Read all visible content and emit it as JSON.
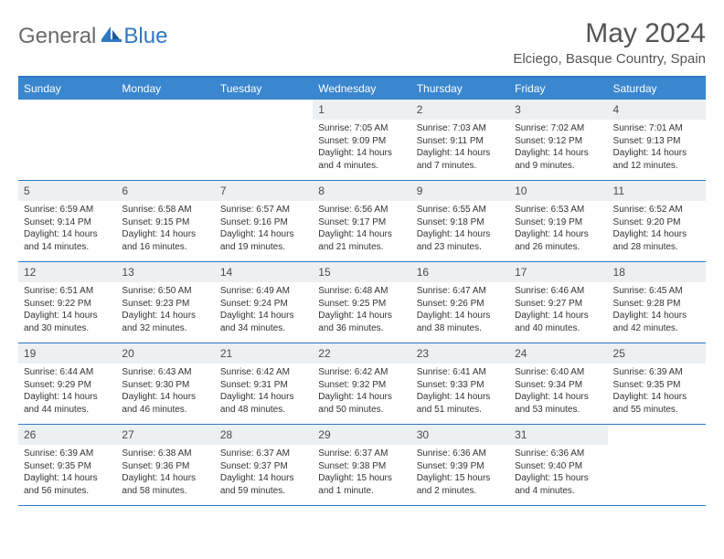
{
  "logo": {
    "text1": "General",
    "text2": "Blue"
  },
  "title": "May 2024",
  "location": "Elciego, Basque Country, Spain",
  "colors": {
    "header_bg": "#3a86cf",
    "header_text": "#ffffff",
    "border": "#2f78c4",
    "daynum_bg": "#ecf0f3",
    "body_text": "#333333",
    "title_text": "#555555"
  },
  "day_names": [
    "Sunday",
    "Monday",
    "Tuesday",
    "Wednesday",
    "Thursday",
    "Friday",
    "Saturday"
  ],
  "weeks": [
    [
      null,
      null,
      null,
      {
        "n": "1",
        "sr": "7:05 AM",
        "ss": "9:09 PM",
        "dl": "14 hours and 4 minutes."
      },
      {
        "n": "2",
        "sr": "7:03 AM",
        "ss": "9:11 PM",
        "dl": "14 hours and 7 minutes."
      },
      {
        "n": "3",
        "sr": "7:02 AM",
        "ss": "9:12 PM",
        "dl": "14 hours and 9 minutes."
      },
      {
        "n": "4",
        "sr": "7:01 AM",
        "ss": "9:13 PM",
        "dl": "14 hours and 12 minutes."
      }
    ],
    [
      {
        "n": "5",
        "sr": "6:59 AM",
        "ss": "9:14 PM",
        "dl": "14 hours and 14 minutes."
      },
      {
        "n": "6",
        "sr": "6:58 AM",
        "ss": "9:15 PM",
        "dl": "14 hours and 16 minutes."
      },
      {
        "n": "7",
        "sr": "6:57 AM",
        "ss": "9:16 PM",
        "dl": "14 hours and 19 minutes."
      },
      {
        "n": "8",
        "sr": "6:56 AM",
        "ss": "9:17 PM",
        "dl": "14 hours and 21 minutes."
      },
      {
        "n": "9",
        "sr": "6:55 AM",
        "ss": "9:18 PM",
        "dl": "14 hours and 23 minutes."
      },
      {
        "n": "10",
        "sr": "6:53 AM",
        "ss": "9:19 PM",
        "dl": "14 hours and 26 minutes."
      },
      {
        "n": "11",
        "sr": "6:52 AM",
        "ss": "9:20 PM",
        "dl": "14 hours and 28 minutes."
      }
    ],
    [
      {
        "n": "12",
        "sr": "6:51 AM",
        "ss": "9:22 PM",
        "dl": "14 hours and 30 minutes."
      },
      {
        "n": "13",
        "sr": "6:50 AM",
        "ss": "9:23 PM",
        "dl": "14 hours and 32 minutes."
      },
      {
        "n": "14",
        "sr": "6:49 AM",
        "ss": "9:24 PM",
        "dl": "14 hours and 34 minutes."
      },
      {
        "n": "15",
        "sr": "6:48 AM",
        "ss": "9:25 PM",
        "dl": "14 hours and 36 minutes."
      },
      {
        "n": "16",
        "sr": "6:47 AM",
        "ss": "9:26 PM",
        "dl": "14 hours and 38 minutes."
      },
      {
        "n": "17",
        "sr": "6:46 AM",
        "ss": "9:27 PM",
        "dl": "14 hours and 40 minutes."
      },
      {
        "n": "18",
        "sr": "6:45 AM",
        "ss": "9:28 PM",
        "dl": "14 hours and 42 minutes."
      }
    ],
    [
      {
        "n": "19",
        "sr": "6:44 AM",
        "ss": "9:29 PM",
        "dl": "14 hours and 44 minutes."
      },
      {
        "n": "20",
        "sr": "6:43 AM",
        "ss": "9:30 PM",
        "dl": "14 hours and 46 minutes."
      },
      {
        "n": "21",
        "sr": "6:42 AM",
        "ss": "9:31 PM",
        "dl": "14 hours and 48 minutes."
      },
      {
        "n": "22",
        "sr": "6:42 AM",
        "ss": "9:32 PM",
        "dl": "14 hours and 50 minutes."
      },
      {
        "n": "23",
        "sr": "6:41 AM",
        "ss": "9:33 PM",
        "dl": "14 hours and 51 minutes."
      },
      {
        "n": "24",
        "sr": "6:40 AM",
        "ss": "9:34 PM",
        "dl": "14 hours and 53 minutes."
      },
      {
        "n": "25",
        "sr": "6:39 AM",
        "ss": "9:35 PM",
        "dl": "14 hours and 55 minutes."
      }
    ],
    [
      {
        "n": "26",
        "sr": "6:39 AM",
        "ss": "9:35 PM",
        "dl": "14 hours and 56 minutes."
      },
      {
        "n": "27",
        "sr": "6:38 AM",
        "ss": "9:36 PM",
        "dl": "14 hours and 58 minutes."
      },
      {
        "n": "28",
        "sr": "6:37 AM",
        "ss": "9:37 PM",
        "dl": "14 hours and 59 minutes."
      },
      {
        "n": "29",
        "sr": "6:37 AM",
        "ss": "9:38 PM",
        "dl": "15 hours and 1 minute."
      },
      {
        "n": "30",
        "sr": "6:36 AM",
        "ss": "9:39 PM",
        "dl": "15 hours and 2 minutes."
      },
      {
        "n": "31",
        "sr": "6:36 AM",
        "ss": "9:40 PM",
        "dl": "15 hours and 4 minutes."
      },
      null
    ]
  ],
  "labels": {
    "sunrise": "Sunrise:",
    "sunset": "Sunset:",
    "daylight": "Daylight:"
  }
}
